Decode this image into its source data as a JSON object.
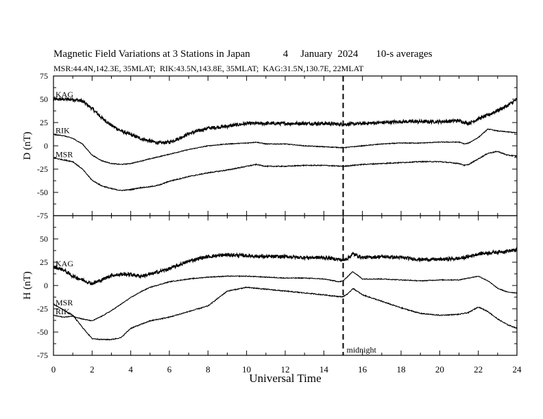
{
  "header": {
    "title": "Magnetic Field Variations at 3 Stations in Japan",
    "date_day": "4",
    "date_text": "January  2024",
    "averaging": "10-s averages",
    "stations_line": "MSR:44.4N,142.3E, 35MLAT;  RIK:43.5N,143.8E, 35MLAT;  KAG:31.5N,130.7E, 22MLAT"
  },
  "xaxis": {
    "label": "Universal Time",
    "ticks": [
      0,
      2,
      4,
      6,
      8,
      10,
      12,
      14,
      16,
      18,
      20,
      22,
      24
    ],
    "range": [
      0,
      24
    ]
  },
  "midnight": {
    "x": 15,
    "label": "midnight"
  },
  "chart_data": [
    {
      "type": "line",
      "panel": "top",
      "ylabel": "D (nT)",
      "ylim": [
        -75,
        75
      ],
      "yticks": [
        75,
        50,
        25,
        0,
        -25,
        -50,
        -75
      ],
      "grid": false,
      "series": [
        {
          "name": "KAG",
          "noise": 1.8,
          "x": [
            0,
            0.5,
            1,
            1.5,
            2,
            2.5,
            3,
            3.5,
            4,
            4.5,
            5,
            5.5,
            6,
            6.5,
            7,
            7.5,
            8,
            8.5,
            9,
            10,
            11,
            12,
            13,
            14,
            15,
            16,
            17,
            18,
            19,
            20,
            21,
            21.5,
            22,
            22.5,
            23,
            23.5,
            24
          ],
          "y": [
            50,
            50,
            50,
            48,
            40,
            30,
            22,
            16,
            12,
            8,
            5,
            3,
            4,
            8,
            13,
            16,
            19,
            20,
            21,
            24,
            24,
            24,
            24,
            24,
            23,
            24,
            25,
            26,
            26,
            26,
            27,
            24,
            29,
            33,
            38,
            43,
            50
          ]
        },
        {
          "name": "RIK",
          "noise": 0.4,
          "x": [
            0,
            0.5,
            1,
            1.5,
            2,
            2.5,
            3,
            3.5,
            4,
            5,
            6,
            7,
            8,
            9,
            10,
            10.5,
            11,
            12,
            13,
            14,
            15,
            15.5,
            16,
            17,
            18,
            19,
            20,
            21,
            21.3,
            21.5,
            22,
            22.5,
            23,
            23.5,
            24
          ],
          "y": [
            12,
            11,
            8,
            2,
            -10,
            -16,
            -19,
            -20,
            -19,
            -14,
            -9,
            -4,
            0,
            2,
            3,
            4,
            2,
            2,
            0,
            -1,
            -2,
            -1,
            0,
            2,
            3,
            3,
            4,
            4,
            2,
            3,
            9,
            18,
            16,
            15,
            14
          ]
        },
        {
          "name": "MSR",
          "noise": 0.5,
          "x": [
            0,
            0.5,
            1,
            1.5,
            2,
            2.5,
            3,
            3.5,
            4,
            4.5,
            5,
            5.5,
            6,
            7,
            8,
            9,
            10,
            10.5,
            11,
            12,
            13,
            14,
            15,
            16,
            17,
            18,
            19,
            20,
            21,
            21.3,
            21.5,
            22,
            22.5,
            23,
            23.5,
            24
          ],
          "y": [
            -13,
            -15,
            -17,
            -25,
            -37,
            -43,
            -46,
            -48,
            -47,
            -45,
            -44,
            -42,
            -38,
            -33,
            -29,
            -26,
            -22,
            -20,
            -22,
            -22,
            -21,
            -21,
            -22,
            -20,
            -19,
            -18,
            -17,
            -17,
            -19,
            -21,
            -20,
            -14,
            -8,
            -6,
            -10,
            -11
          ]
        }
      ]
    },
    {
      "type": "line",
      "panel": "bottom",
      "ylabel": "H (nT)",
      "ylim": [
        -75,
        75
      ],
      "yticks": [
        50,
        25,
        0,
        -25,
        -50,
        -75
      ],
      "grid": false,
      "series": [
        {
          "name": "KAG",
          "noise": 1.8,
          "x": [
            0,
            0.5,
            1,
            1.5,
            2,
            2.5,
            3,
            3.5,
            4,
            4.5,
            5,
            5.5,
            6,
            6.5,
            7,
            7.5,
            8,
            8.5,
            9,
            10,
            11,
            12,
            13,
            14,
            14.8,
            15,
            15.3,
            15.5,
            16,
            17,
            18,
            19,
            20,
            21,
            21.5,
            22,
            23,
            24
          ],
          "y": [
            20,
            17,
            10,
            6,
            2,
            6,
            11,
            12,
            12,
            10,
            12,
            15,
            18,
            22,
            26,
            29,
            31,
            32,
            33,
            32,
            31,
            31,
            30,
            30,
            28,
            27,
            30,
            34,
            30,
            31,
            30,
            28,
            28,
            29,
            31,
            34,
            36,
            38
          ]
        },
        {
          "name": "RIK",
          "noise": 0.4,
          "x": [
            0,
            0.5,
            1,
            1.5,
            2,
            2.5,
            3,
            3.5,
            4,
            4.5,
            5,
            6,
            7,
            8,
            9,
            10,
            11,
            12,
            13,
            14,
            14.8,
            15,
            15.3,
            15.5,
            16,
            17,
            18,
            19,
            20,
            21,
            21.5,
            22,
            22.5,
            23,
            23.5,
            24
          ],
          "y": [
            -32,
            -34,
            -33,
            -36,
            -38,
            -33,
            -27,
            -20,
            -13,
            -7,
            -2,
            4,
            7,
            9,
            10,
            10,
            9,
            8,
            8,
            7,
            4,
            5,
            11,
            15,
            7,
            7,
            6,
            5,
            6,
            6,
            8,
            10,
            5,
            -3,
            -7,
            -8
          ]
        },
        {
          "name": "MSR",
          "noise": 0.5,
          "x": [
            0,
            0.5,
            1,
            1.5,
            2,
            2.5,
            3,
            3.5,
            4,
            4.5,
            5,
            5.5,
            6,
            7,
            8,
            8.5,
            9,
            10,
            11,
            12,
            13,
            14,
            14.8,
            15,
            15.3,
            15.5,
            16,
            17,
            18,
            19,
            20,
            21,
            21.5,
            22,
            22.5,
            23,
            23.5,
            24
          ],
          "y": [
            -20,
            -26,
            -32,
            -45,
            -57,
            -58,
            -58,
            -56,
            -46,
            -42,
            -38,
            -36,
            -34,
            -28,
            -22,
            -14,
            -6,
            -2,
            -4,
            -6,
            -8,
            -10,
            -12,
            -12,
            -8,
            -3,
            -10,
            -17,
            -24,
            -30,
            -32,
            -31,
            -29,
            -23,
            -28,
            -36,
            -42,
            -46
          ]
        }
      ]
    }
  ]
}
